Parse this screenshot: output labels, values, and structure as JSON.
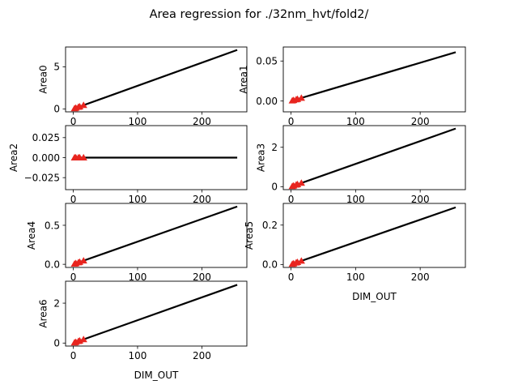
{
  "title": "Area regression for ./32nm_hvt/fold2/",
  "colors": {
    "line": "#000000",
    "marker": "#e8251f",
    "axes": "#000000",
    "background": "#ffffff"
  },
  "chart_data": [
    {
      "type": "scatter",
      "title": "",
      "ylabel": "Area0",
      "xlabel": "",
      "xlim": [
        -12,
        270
      ],
      "ylim": [
        -0.35,
        7.35
      ],
      "xticks": [
        0,
        100,
        200
      ],
      "yticks": [
        0,
        5
      ],
      "ytick_labels": [
        "0",
        "5"
      ],
      "fit_line": {
        "x": [
          0,
          255
        ],
        "y": [
          0,
          7.0
        ]
      },
      "points": {
        "x": [
          2,
          4,
          8,
          10,
          16
        ],
        "y": [
          0.05,
          0.11,
          0.22,
          0.27,
          0.44
        ]
      }
    },
    {
      "type": "scatter",
      "title": "",
      "ylabel": "Area1",
      "xlabel": "",
      "xlim": [
        -12,
        270
      ],
      "ylim": [
        -0.0135,
        0.0675
      ],
      "xticks": [
        0,
        100,
        200
      ],
      "yticks": [
        0.0,
        0.05
      ],
      "ytick_labels": [
        "0.00",
        "0.05"
      ],
      "fit_line": {
        "x": [
          0,
          255
        ],
        "y": [
          0,
          0.061
        ]
      },
      "points": {
        "x": [
          2,
          4,
          8,
          10,
          16
        ],
        "y": [
          0.0005,
          0.001,
          0.0019,
          0.0024,
          0.0038
        ]
      }
    },
    {
      "type": "scatter",
      "title": "",
      "ylabel": "Area2",
      "xlabel": "",
      "xlim": [
        -12,
        270
      ],
      "ylim": [
        -0.04,
        0.04
      ],
      "xticks": [
        0,
        100,
        200
      ],
      "yticks": [
        -0.025,
        0.0,
        0.025
      ],
      "ytick_labels": [
        "−0.025",
        "0.000",
        "0.025"
      ],
      "fit_line": {
        "x": [
          0,
          255
        ],
        "y": [
          0,
          0
        ]
      },
      "points": {
        "x": [
          2,
          4,
          8,
          10,
          16
        ],
        "y": [
          0,
          0,
          0,
          0,
          0
        ]
      }
    },
    {
      "type": "scatter",
      "title": "",
      "ylabel": "Area3",
      "xlabel": "",
      "xlim": [
        -12,
        270
      ],
      "ylim": [
        -0.15,
        3.1
      ],
      "xticks": [
        0,
        100,
        200
      ],
      "yticks": [
        0,
        2
      ],
      "ytick_labels": [
        "0",
        "2"
      ],
      "fit_line": {
        "x": [
          0,
          255
        ],
        "y": [
          0,
          2.95
        ]
      },
      "points": {
        "x": [
          2,
          4,
          8,
          10,
          16
        ],
        "y": [
          0.023,
          0.046,
          0.093,
          0.116,
          0.185
        ]
      }
    },
    {
      "type": "scatter",
      "title": "",
      "ylabel": "Area4",
      "xlabel": "",
      "xlim": [
        -12,
        270
      ],
      "ylim": [
        -0.04,
        0.78
      ],
      "xticks": [
        0,
        100,
        200
      ],
      "yticks": [
        0.0,
        0.5
      ],
      "ytick_labels": [
        "0.0",
        "0.5"
      ],
      "fit_line": {
        "x": [
          0,
          255
        ],
        "y": [
          0,
          0.74
        ]
      },
      "points": {
        "x": [
          2,
          4,
          8,
          10,
          16
        ],
        "y": [
          0.006,
          0.012,
          0.023,
          0.029,
          0.046
        ]
      }
    },
    {
      "type": "scatter",
      "title": "",
      "ylabel": "Area5",
      "xlabel": "DIM_OUT",
      "xlim": [
        -12,
        270
      ],
      "ylim": [
        -0.015,
        0.31
      ],
      "xticks": [
        0,
        100,
        200
      ],
      "yticks": [
        0.0,
        0.2
      ],
      "ytick_labels": [
        "0.0",
        "0.2"
      ],
      "fit_line": {
        "x": [
          0,
          255
        ],
        "y": [
          0,
          0.29
        ]
      },
      "points": {
        "x": [
          2,
          4,
          8,
          10,
          16
        ],
        "y": [
          0.0023,
          0.0045,
          0.0091,
          0.0114,
          0.018
        ]
      }
    },
    {
      "type": "scatter",
      "title": "",
      "ylabel": "Area6",
      "xlabel": "DIM_OUT",
      "xlim": [
        -12,
        270
      ],
      "ylim": [
        -0.15,
        3.1
      ],
      "xticks": [
        0,
        100,
        200
      ],
      "yticks": [
        0,
        2
      ],
      "ytick_labels": [
        "0",
        "2"
      ],
      "fit_line": {
        "x": [
          0,
          255
        ],
        "y": [
          0,
          2.92
        ]
      },
      "points": {
        "x": [
          2,
          4,
          8,
          10,
          16
        ],
        "y": [
          0.023,
          0.046,
          0.092,
          0.115,
          0.183
        ]
      }
    }
  ]
}
